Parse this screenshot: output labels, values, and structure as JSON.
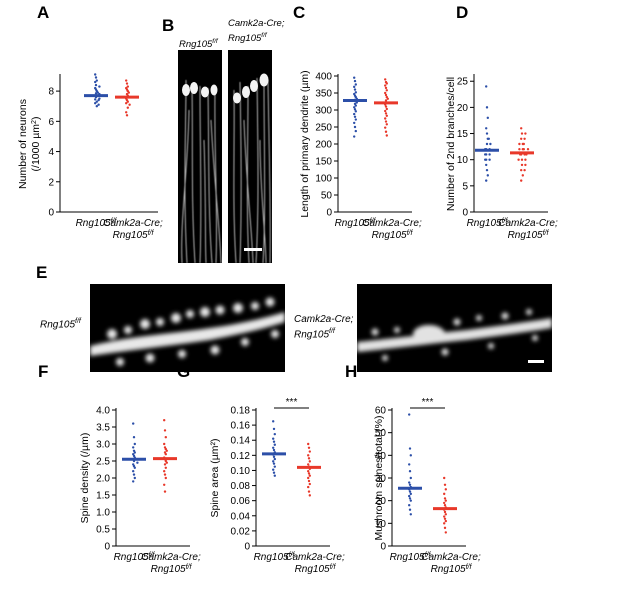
{
  "colors": {
    "control": "#2c4fa8",
    "mutant": "#e8382a",
    "axis": "#000000"
  },
  "labels": {
    "control_main": "Rng105",
    "control_sup": "f/f",
    "mutant_line1": "Camk2a-Cre;",
    "mutant_main": "Rng105",
    "mutant_sup": "f/f"
  },
  "panels": {
    "A": "A",
    "B": "B",
    "C": "C",
    "D": "D",
    "E": "E",
    "F": "F",
    "G": "G",
    "H": "H"
  },
  "significance": {
    "G": "***",
    "H": "***"
  },
  "chart_data": [
    {
      "panel": "A",
      "type": "scatter",
      "ylabel": "Number of neurons (/1000 µm²)",
      "ylabel_line1": "Number of neurons",
      "ylabel_line2": "(/1000 µm",
      "ylabel_sup": "2",
      "ylabel_close": ")",
      "ylim": [
        0,
        9
      ],
      "yticks": [
        0,
        2,
        4,
        6,
        8
      ],
      "categories": [
        "Rng105 f/f",
        "Camk2a-Cre; Rng105 f/f"
      ],
      "series": [
        {
          "means": 7.7,
          "values": [
            9.1,
            8.9,
            8.7,
            8.6,
            8.4,
            8.3,
            8.2,
            8.1,
            8.0,
            7.9,
            7.85,
            7.8,
            7.7,
            7.6,
            7.5,
            7.45,
            7.4,
            7.3,
            7.2,
            7.1,
            7.0
          ]
        },
        {
          "means": 7.6,
          "values": [
            8.7,
            8.5,
            8.3,
            8.2,
            8.1,
            8.0,
            7.9,
            7.8,
            7.7,
            7.5,
            7.4,
            7.3,
            7.2,
            7.1,
            6.9,
            6.6,
            6.4
          ]
        }
      ]
    },
    {
      "panel": "C",
      "type": "scatter",
      "ylabel": "Length of primary dendrite (µm)",
      "ylim": [
        0,
        400
      ],
      "yticks": [
        0,
        50,
        100,
        150,
        200,
        250,
        300,
        350,
        400
      ],
      "categories": [
        "Rng105 f/f",
        "Camk2a-Cre; Rng105 f/f"
      ],
      "series": [
        {
          "means": 328,
          "values": [
            395,
            385,
            375,
            368,
            360,
            352,
            347,
            342,
            338,
            333,
            330,
            326,
            322,
            318,
            313,
            308,
            302,
            296,
            288,
            280,
            272,
            262,
            250,
            238,
            222
          ]
        },
        {
          "means": 321,
          "values": [
            390,
            382,
            378,
            372,
            365,
            358,
            350,
            344,
            338,
            333,
            328,
            322,
            316,
            310,
            303,
            297,
            290,
            283,
            275,
            266,
            258,
            248,
            236,
            225
          ]
        }
      ]
    },
    {
      "panel": "D",
      "type": "scatter",
      "ylabel": "Number of 2nd branches/cell",
      "ylim": [
        0,
        26
      ],
      "yticks": [
        0,
        5,
        10,
        15,
        20,
        25
      ],
      "categories": [
        "Rng105 f/f",
        "Camk2a-Cre; Rng105 f/f"
      ],
      "series": [
        {
          "means": 11.8,
          "values": [
            24,
            20,
            18,
            16,
            15,
            14,
            14,
            13,
            13,
            12,
            12,
            12,
            11,
            11,
            11,
            10,
            10,
            10,
            9,
            8,
            7,
            6
          ]
        },
        {
          "means": 11.3,
          "values": [
            16,
            15,
            15,
            14,
            14,
            13,
            13,
            13,
            12,
            12,
            12,
            12,
            11,
            11,
            11,
            11,
            10,
            10,
            10,
            9,
            9,
            8,
            8,
            7,
            6
          ]
        }
      ]
    },
    {
      "panel": "F",
      "type": "scatter",
      "ylabel": "Spine density (/µm)",
      "ylim": [
        0,
        4.0
      ],
      "yticks": [
        0,
        0.5,
        1.0,
        1.5,
        2.0,
        2.5,
        3.0,
        3.5,
        4.0
      ],
      "categories": [
        "Rng105 f/f",
        "Camk2a-Cre; Rng105 f/f"
      ],
      "series": [
        {
          "means": 2.55,
          "values": [
            3.6,
            3.2,
            3.0,
            2.9,
            2.8,
            2.75,
            2.7,
            2.65,
            2.6,
            2.55,
            2.5,
            2.45,
            2.4,
            2.35,
            2.3,
            2.2,
            2.1,
            2.0,
            1.9
          ]
        },
        {
          "means": 2.57,
          "values": [
            3.7,
            3.4,
            3.2,
            3.0,
            2.9,
            2.85,
            2.8,
            2.75,
            2.7,
            2.6,
            2.55,
            2.5,
            2.45,
            2.4,
            2.3,
            2.2,
            2.1,
            2.0,
            1.8,
            1.6
          ]
        }
      ]
    },
    {
      "panel": "G",
      "type": "scatter",
      "ylabel": "Spine area (µm²)",
      "ylim": [
        0,
        0.18
      ],
      "yticks": [
        0,
        0.02,
        0.04,
        0.06,
        0.08,
        0.1,
        0.12,
        0.14,
        0.16,
        0.18
      ],
      "categories": [
        "Rng105 f/f",
        "Camk2a-Cre; Rng105 f/f"
      ],
      "series": [
        {
          "means": 0.122,
          "values": [
            0.165,
            0.155,
            0.148,
            0.142,
            0.138,
            0.134,
            0.13,
            0.127,
            0.124,
            0.121,
            0.118,
            0.115,
            0.112,
            0.109,
            0.105,
            0.101,
            0.097,
            0.093
          ]
        },
        {
          "means": 0.104,
          "values": [
            0.135,
            0.13,
            0.125,
            0.12,
            0.116,
            0.112,
            0.108,
            0.105,
            0.102,
            0.099,
            0.096,
            0.093,
            0.09,
            0.086,
            0.082,
            0.078,
            0.072,
            0.067
          ]
        }
      ]
    },
    {
      "panel": "H",
      "type": "scatter",
      "ylabel": "Mushroom spines/total (%)",
      "ylim": [
        0,
        60
      ],
      "yticks": [
        0,
        10,
        20,
        30,
        40,
        50,
        60
      ],
      "categories": [
        "Rng105 f/f",
        "Camk2a-Cre; Rng105 f/f"
      ],
      "series": [
        {
          "means": 25.5,
          "values": [
            58,
            43,
            40,
            36,
            33,
            30,
            28,
            27,
            26,
            25,
            24,
            23,
            22,
            21,
            20,
            18,
            16,
            14
          ]
        },
        {
          "means": 16.5,
          "values": [
            30,
            27,
            25,
            23,
            21,
            20,
            19,
            18,
            17,
            16,
            15,
            14,
            13,
            12,
            11,
            10,
            8,
            6
          ]
        }
      ]
    }
  ]
}
